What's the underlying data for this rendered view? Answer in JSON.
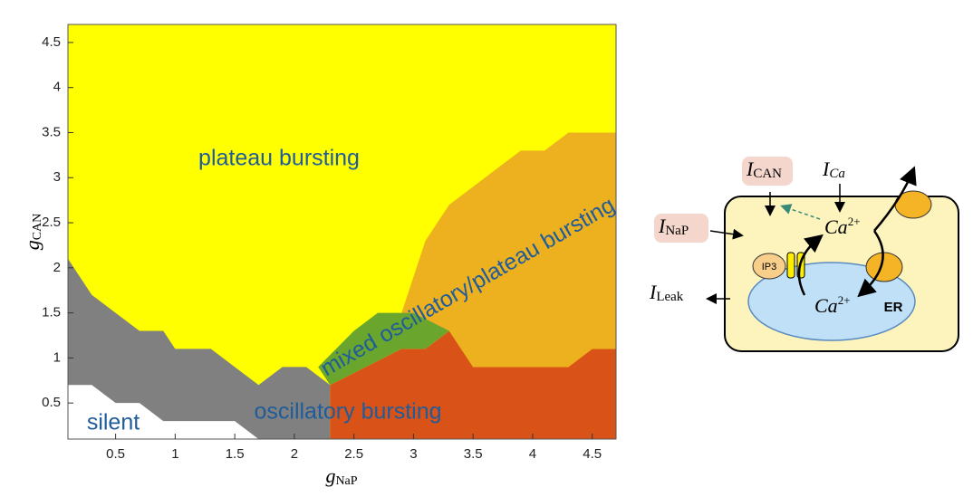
{
  "chart_data": {
    "type": "region",
    "xlabel": {
      "symbol": "g",
      "subscript": "NaP"
    },
    "ylabel": {
      "symbol": "g",
      "subscript": "CAN"
    },
    "xlim": [
      0.1,
      4.7
    ],
    "ylim": [
      0.1,
      4.7
    ],
    "xticks": [
      0.5,
      1,
      1.5,
      2,
      2.5,
      3,
      3.5,
      4,
      4.5
    ],
    "yticks": [
      0.5,
      1,
      1.5,
      2,
      2.5,
      3,
      3.5,
      4,
      4.5
    ],
    "background": "#ffff00",
    "regions": [
      {
        "color": "#808080",
        "x": [
          0.1,
          0.3,
          0.5,
          0.7,
          0.9,
          1.0,
          1.3,
          1.7,
          1.9,
          2.1,
          2.3,
          2.3,
          0.1
        ],
        "y": [
          2.1,
          1.7,
          1.5,
          1.3,
          1.3,
          1.1,
          1.1,
          0.7,
          0.9,
          0.9,
          0.7,
          0.1,
          0.1
        ]
      },
      {
        "color": "#ffffff",
        "x": [
          0.1,
          0.3,
          0.5,
          0.7,
          0.9,
          1.5,
          1.7,
          0.1
        ],
        "y": [
          0.7,
          0.7,
          0.5,
          0.5,
          0.3,
          0.3,
          0.1,
          0.1
        ]
      },
      {
        "color": "#d95319",
        "x": [
          2.3,
          2.3,
          2.9,
          3.1,
          3.3,
          3.5,
          4.3,
          4.5,
          4.7,
          4.7
        ],
        "y": [
          0.1,
          0.7,
          1.1,
          1.1,
          1.3,
          0.9,
          0.9,
          1.1,
          1.1,
          0.1
        ]
      },
      {
        "color": "#edb120",
        "x": [
          2.9,
          3.1,
          3.3,
          3.5,
          3.7,
          3.9,
          4.1,
          4.3,
          4.7,
          4.7,
          4.5,
          4.3,
          3.5,
          3.3,
          3.1
        ],
        "y": [
          1.5,
          2.3,
          2.7,
          2.9,
          3.1,
          3.3,
          3.3,
          3.5,
          3.5,
          1.1,
          1.1,
          0.9,
          0.9,
          1.3,
          1.1
        ]
      },
      {
        "color": "#6aa52e",
        "x": [
          2.2,
          2.5,
          2.7,
          3.0,
          3.3,
          3.1,
          2.9,
          2.3
        ],
        "y": [
          0.9,
          1.3,
          1.5,
          1.5,
          1.3,
          1.1,
          1.1,
          0.7
        ]
      }
    ],
    "annotations": [
      "plateau bursting",
      "mixed oscillatory/plateau bursting",
      "oscillatory bursting",
      "silent"
    ]
  },
  "diagram": {
    "i_can": {
      "symbol": "I",
      "subscript": "CAN"
    },
    "i_ca": {
      "symbol": "I",
      "subscript": "Ca"
    },
    "i_nap": {
      "symbol": "I",
      "subscript": "NaP"
    },
    "i_leak": {
      "symbol": "I",
      "subscript": "Leak"
    },
    "ca_cyto": {
      "symbol": "Ca",
      "superscript": "2+"
    },
    "ca_er": {
      "symbol": "Ca",
      "superscript": "2+"
    },
    "ip3": "IP3",
    "er": "ER"
  }
}
